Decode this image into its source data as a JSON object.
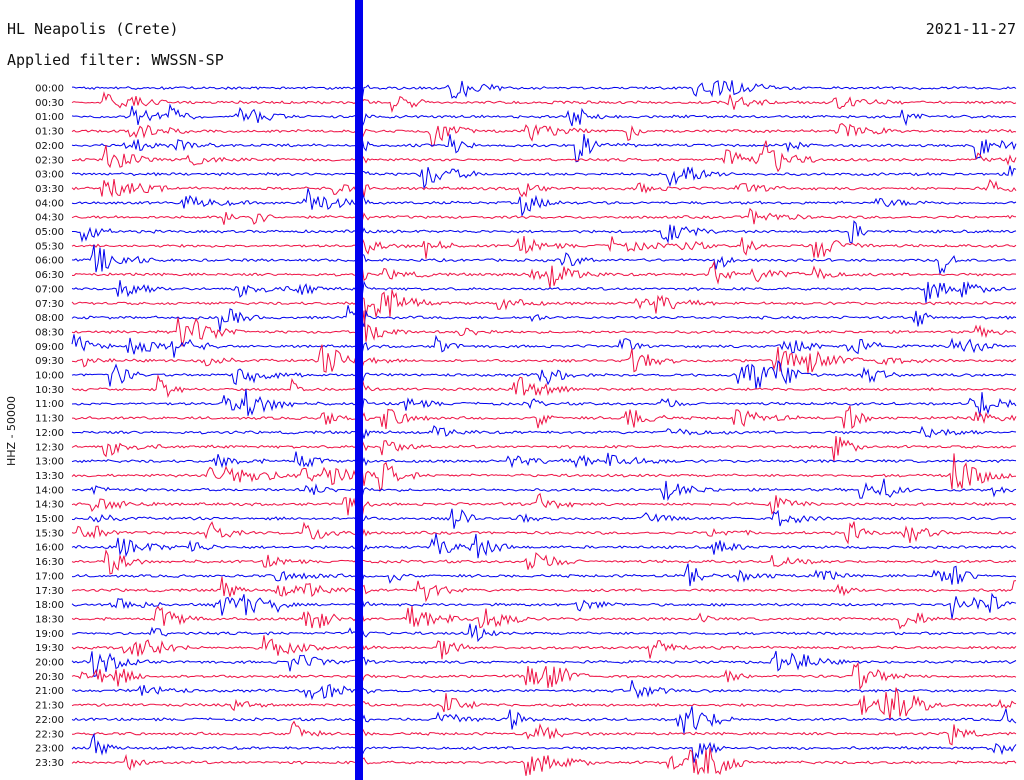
{
  "header": {
    "station": "HL Neapolis (Crete)",
    "filter": "Applied filter: WWSSN-SP",
    "date": "2021-11-27"
  },
  "chart_data": {
    "type": "line",
    "title": "HL Neapolis (Crete)",
    "subtitle": "Applied filter: WWSSN-SP",
    "date": "2021-11-27",
    "ylabel": "HHZ - 50000",
    "xlabel": "",
    "y_tick_labels": [
      "00:00",
      "00:30",
      "01:00",
      "01:30",
      "02:00",
      "02:30",
      "03:00",
      "03:30",
      "04:00",
      "04:30",
      "05:00",
      "05:30",
      "06:00",
      "06:30",
      "07:00",
      "07:30",
      "08:00",
      "08:30",
      "09:00",
      "09:30",
      "10:00",
      "10:30",
      "11:00",
      "11:30",
      "12:00",
      "12:30",
      "13:00",
      "13:30",
      "14:00",
      "14:30",
      "15:00",
      "15:30",
      "16:00",
      "16:30",
      "17:00",
      "17:30",
      "18:00",
      "18:30",
      "19:00",
      "19:30",
      "20:00",
      "20:30",
      "21:00",
      "21:30",
      "22:00",
      "22:30",
      "23:00",
      "23:30"
    ],
    "minutes_per_line": 30,
    "trace_colors": [
      "#0000ee",
      "#ee1144"
    ],
    "grid": false,
    "legend": "none"
  }
}
